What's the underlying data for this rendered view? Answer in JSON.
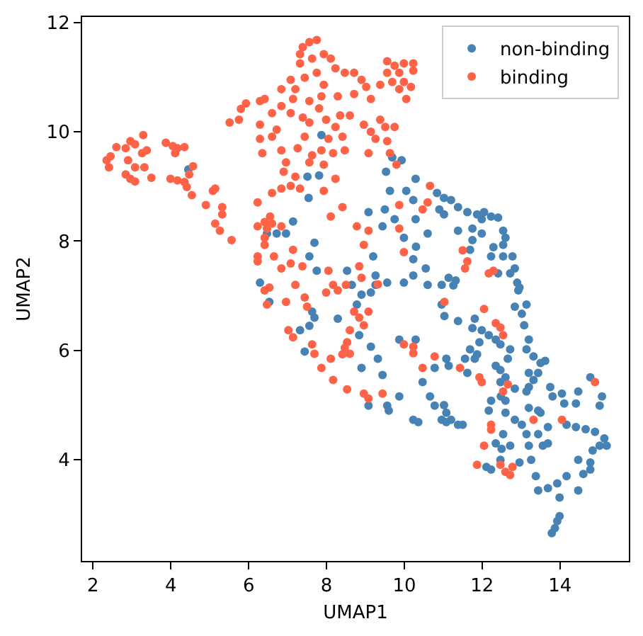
{
  "chart_data": {
    "type": "scatter",
    "xlabel": "UMAP1",
    "ylabel": "UMAP2",
    "xlim": [
      1.72,
      15.77
    ],
    "ylim": [
      2.15,
      12.1
    ],
    "xticks": [
      2,
      4,
      6,
      8,
      10,
      12,
      14
    ],
    "yticks": [
      4,
      6,
      8,
      10,
      12
    ],
    "grid": false,
    "legend": "top right",
    "marker": "circle",
    "series": [
      {
        "name": "non-binding",
        "color": "#4682b4",
        "x": [
          4.45,
          6.29,
          6.47,
          6.72,
          7.87,
          7.51,
          7.81,
          7.54,
          9.69,
          9.53,
          9.93,
          10.29,
          10.84,
          11.02,
          11.2,
          9.63,
          10.05,
          10.23,
          10.9,
          10.29,
          9.5,
          9.75,
          9.08,
          9.44,
          10.6,
          9.99,
          9.2,
          7.69,
          7.14,
          6.96,
          7.56,
          7.75,
          8.53,
          8.65,
          9.26,
          9.56,
          9.99,
          10.23,
          10.23,
          10.55,
          10.6,
          10.3,
          11.38,
          11.02,
          11.62,
          11.87,
          12.05,
          11.99,
          12.23,
          12.41,
          11.75,
          11.38,
          11.99,
          12.54,
          12.6,
          11.75,
          12.29,
          11.69,
          12.54,
          12.23,
          12.54,
          12.78,
          12.84,
          12.72,
          12.41,
          11.14,
          11.32,
          12.9,
          12.93,
          11.26,
          12.96,
          11.03,
          11.38,
          11.81,
          11.75,
          11.99,
          12.17,
          12.35,
          12.47,
          12.84,
          13.14,
          13.02,
          13.08,
          13.2,
          13.14,
          13.32,
          13.5,
          13.62,
          13.44,
          13.32,
          13.2,
          13.75,
          14.05,
          14.47,
          14.78,
          15.02,
          15.08,
          14.41,
          14.11,
          13.81,
          13.5,
          13.69,
          14.17,
          14.41,
          14.66,
          14.9,
          15.14,
          15.2,
          15.02,
          14.84,
          14.47,
          14.78,
          14.78,
          14.6,
          14.47,
          14.17,
          13.93,
          13.69,
          13.38,
          13.44,
          13.99,
          13.93,
          13.87,
          13.79,
          13.99,
          13.56,
          13.69,
          13.26,
          12.96,
          13.02,
          13.14,
          13.44,
          13.2,
          12.72,
          12.5,
          12.35,
          12.11,
          12.23,
          12.47,
          12.54,
          12.84,
          12.6,
          13.2,
          13.44,
          12.17,
          12.6,
          12.48,
          12.23,
          12.84,
          13.2,
          13.14,
          12.47,
          12.6,
          12.47,
          12.66,
          12.72,
          12.35,
          11.56,
          11.81,
          11.69,
          11.87,
          11.93,
          11.62,
          11.08,
          11.14,
          11.08,
          11.2,
          11.38,
          11.5,
          11.02,
          10.96,
          6.53,
          7.63,
          7.69,
          7.32,
          7.56,
          7.44,
          8.29,
          8.78,
          9.14,
          8.84,
          9.14,
          9.32,
          9.44,
          8.9,
          9.08,
          9.56,
          9.6,
          9.87,
          9.87,
          10.29,
          10.47,
          10.66,
          10.78,
          10.23,
          10.36,
          11.08,
          10.96,
          10.78,
          9.26,
          8.9,
          10.96
        ],
        "values": [
          9.31,
          7.24,
          8.14,
          8.14,
          9.94,
          9.18,
          9.2,
          8.79,
          9.53,
          9.27,
          9.48,
          9.14,
          8.88,
          8.79,
          8.75,
          8.92,
          8.92,
          8.75,
          8.58,
          8.4,
          8.58,
          8.4,
          8.53,
          8.27,
          8.14,
          8.06,
          7.72,
          7.97,
          8.36,
          8.14,
          7.72,
          7.46,
          7.46,
          7.2,
          7.37,
          7.24,
          7.24,
          7.37,
          7.67,
          7.5,
          7.2,
          7.9,
          8.62,
          8.49,
          8.53,
          8.49,
          8.53,
          8.4,
          8.45,
          8.43,
          8.23,
          8.19,
          8.14,
          8.19,
          8.06,
          8.02,
          7.89,
          7.84,
          7.93,
          7.72,
          7.72,
          7.72,
          7.5,
          7.41,
          7.41,
          7.33,
          7.28,
          7.24,
          7.1,
          7.19,
          7.15,
          6.63,
          6.54,
          6.58,
          6.41,
          6.37,
          6.28,
          6.2,
          6.11,
          6.8,
          6.84,
          6.67,
          6.46,
          6.2,
          6.02,
          5.89,
          5.77,
          5.81,
          5.59,
          5.46,
          5.33,
          5.33,
          5.21,
          5.25,
          5.51,
          4.99,
          5.16,
          5.03,
          5.03,
          5.16,
          4.86,
          4.6,
          4.64,
          4.6,
          4.56,
          4.51,
          4.39,
          4.26,
          4.26,
          4.17,
          4.0,
          3.95,
          3.82,
          3.74,
          3.44,
          3.7,
          3.57,
          3.48,
          3.7,
          3.44,
          3.31,
          2.88,
          2.75,
          2.66,
          2.97,
          4.26,
          4.3,
          4.0,
          3.95,
          4.64,
          4.47,
          4.47,
          4.26,
          4.26,
          4.2,
          4.3,
          3.87,
          3.82,
          4.0,
          4.47,
          4.73,
          4.86,
          4.95,
          4.9,
          4.9,
          5.08,
          5.16,
          5.08,
          5.3,
          5.59,
          5.25,
          5.42,
          5.51,
          5.64,
          5.85,
          6.02,
          5.72,
          5.85,
          5.85,
          6.02,
          5.93,
          6.15,
          5.59,
          5.85,
          5.72,
          4.86,
          4.73,
          4.64,
          4.64,
          5.0,
          4.73,
          6.89,
          6.71,
          6.6,
          6.37,
          6.45,
          5.98,
          6.58,
          6.84,
          7.06,
          6.28,
          6.07,
          5.85,
          5.55,
          5.68,
          4.99,
          4.99,
          4.9,
          5.16,
          6.2,
          6.2,
          5.42,
          5.16,
          4.99,
          4.73,
          4.69,
          4.69,
          6.84,
          5.68,
          7.2,
          7.02,
          7.2
        ]
      },
      {
        "name": "binding",
        "color": "#ff6347",
        "x": [
          2.35,
          2.41,
          2.6,
          2.84,
          2.96,
          3.08,
          3.29,
          3.26,
          3.38,
          2.9,
          3.08,
          3.32,
          2.84,
          2.96,
          3.08,
          3.5,
          2.45,
          3.87,
          4.05,
          4.17,
          4.35,
          4.11,
          4.57,
          3.99,
          4.17,
          4.35,
          4.47,
          4.41,
          4.54,
          4.9,
          5.08,
          5.14,
          5.32,
          5.32,
          5.14,
          5.26,
          5.56,
          6.23,
          6.23,
          5.51,
          5.75,
          5.93,
          5.8,
          6.29,
          6.41,
          6.29,
          6.29,
          6.35,
          6.23,
          6.41,
          6.41,
          6.23,
          6.55,
          6.47,
          6.41,
          6.65,
          6.84,
          7.39,
          7.56,
          7.75,
          7.32,
          7.63,
          7.93,
          8.11,
          8.23,
          7.75,
          7.32,
          7.08,
          6.84,
          7.2,
          7.44,
          7.93,
          8.47,
          8.71,
          8.9,
          9.02,
          9.14,
          9.38,
          8.71,
          8.29,
          7.87,
          7.56,
          7.14,
          6.84,
          6.6,
          7.81,
          7.39,
          7.08,
          7.56,
          7.99,
          8.35,
          8.6,
          8.23,
          8.05,
          8.41,
          8.47,
          8.17,
          7.87,
          7.63,
          7.44,
          7.26,
          6.84,
          6.6,
          6.72,
          6.96,
          6.9,
          7.2,
          7.08,
          7.32,
          6.6,
          6.84,
          7.93,
          8.23,
          7.93,
          7.56,
          8.96,
          9.14,
          9.38,
          9.51,
          9.75,
          9.26,
          9.56,
          9.08,
          9.63,
          9.56,
          9.75,
          9.99,
          10.23,
          10.23,
          9.87,
          9.56,
          9.99,
          9.87,
          9.69,
          10.05,
          10.17,
          9.8,
          10.66,
          10.6,
          10.47,
          9.87,
          9.87,
          9.08,
          8.96,
          8.41,
          8.11,
          8.78,
          6.6,
          6.84,
          7.14,
          7.38,
          7.08,
          8.05,
          8.84,
          8.9,
          9.32,
          9.99,
          8.17,
          7.2,
          11.5,
          11.62,
          11.56,
          12.17,
          12.29,
          11.03,
          12.05,
          12.35,
          12.47,
          12.54,
          11.43,
          11.93,
          11.99,
          12.66,
          12.54,
          14.9,
          13.32,
          14.05,
          12.23,
          12.23,
          12.05,
          11.87,
          12.47,
          12.6,
          12.72,
          12.78,
          6.53,
          6.96,
          7.44,
          7.5,
          7.99,
          8.29,
          8.5,
          8.71,
          8.84,
          8.6,
          8.53,
          8.47,
          8.6,
          8.41,
          8.11,
          7.02,
          7.14,
          7.63,
          7.69,
          7.87,
          8.17,
          8.53,
          8.96,
          9.08,
          9.44,
          9.99,
          10.23,
          10.23,
          10.78,
          10.47,
          9.08,
          8.96,
          6.41,
          6.47
        ],
        "values": [
          9.48,
          9.35,
          9.72,
          9.7,
          9.83,
          9.77,
          9.94,
          9.61,
          9.66,
          9.48,
          9.35,
          9.35,
          9.22,
          9.14,
          9.09,
          9.16,
          9.55,
          9.8,
          9.74,
          9.7,
          9.72,
          9.61,
          9.37,
          9.14,
          9.11,
          9.08,
          9.22,
          8.99,
          8.84,
          8.66,
          8.92,
          8.96,
          8.62,
          8.49,
          8.32,
          8.19,
          8.02,
          8.71,
          7.72,
          10.17,
          10.22,
          10.52,
          10.42,
          10.56,
          10.6,
          10.13,
          9.87,
          9.61,
          8.27,
          8.35,
          8.06,
          7.63,
          8.45,
          8.23,
          7.93,
          7.72,
          7.5,
          11.55,
          11.64,
          11.68,
          11.42,
          11.34,
          11.42,
          11.34,
          11.16,
          11.08,
          11.25,
          10.95,
          10.78,
          10.78,
          10.99,
          10.86,
          11.08,
          11.08,
          10.95,
          10.82,
          10.6,
          10.86,
          10.69,
          10.65,
          10.65,
          10.56,
          10.6,
          10.47,
          10.34,
          10.43,
          10.26,
          10.34,
          10.17,
          10.22,
          10.3,
          10.3,
          10.09,
          9.87,
          9.91,
          9.66,
          9.61,
          9.66,
          9.57,
          9.91,
          9.7,
          9.66,
          9.91,
          10.04,
          9.44,
          9.27,
          9.18,
          9.01,
          8.96,
          8.88,
          8.96,
          8.92,
          9.14,
          9.4,
          9.44,
          10.13,
          10.0,
          10.22,
          10.09,
          10.09,
          9.87,
          9.83,
          9.61,
          9.61,
          11.29,
          11.21,
          11.25,
          11.25,
          11.12,
          11.08,
          11.08,
          10.91,
          10.78,
          10.91,
          10.6,
          10.82,
          9.4,
          9.01,
          8.71,
          8.58,
          8.66,
          8.23,
          8.19,
          7.93,
          8.62,
          8.45,
          8.27,
          8.32,
          8.27,
          7.84,
          7.54,
          7.59,
          7.46,
          7.54,
          7.33,
          7.21,
          7.8,
          7.2,
          7.2,
          7.83,
          7.63,
          7.5,
          7.41,
          7.46,
          6.89,
          6.76,
          6.5,
          6.42,
          6.28,
          5.68,
          5.51,
          5.42,
          5.38,
          5.25,
          5.42,
          4.73,
          4.73,
          4.64,
          4.55,
          4.26,
          3.91,
          3.91,
          3.78,
          3.72,
          3.87,
          7.15,
          6.89,
          6.97,
          6.8,
          7.06,
          7.1,
          7.2,
          6.71,
          6.6,
          6.37,
          6.15,
          6.05,
          5.94,
          5.93,
          5.85,
          6.37,
          6.24,
          6.11,
          5.94,
          5.68,
          5.46,
          5.29,
          5.21,
          5.12,
          5.21,
          6.11,
          6.07,
          5.95,
          5.89,
          5.68,
          6.71,
          6.46,
          7.1,
          6.84
        ]
      }
    ]
  }
}
